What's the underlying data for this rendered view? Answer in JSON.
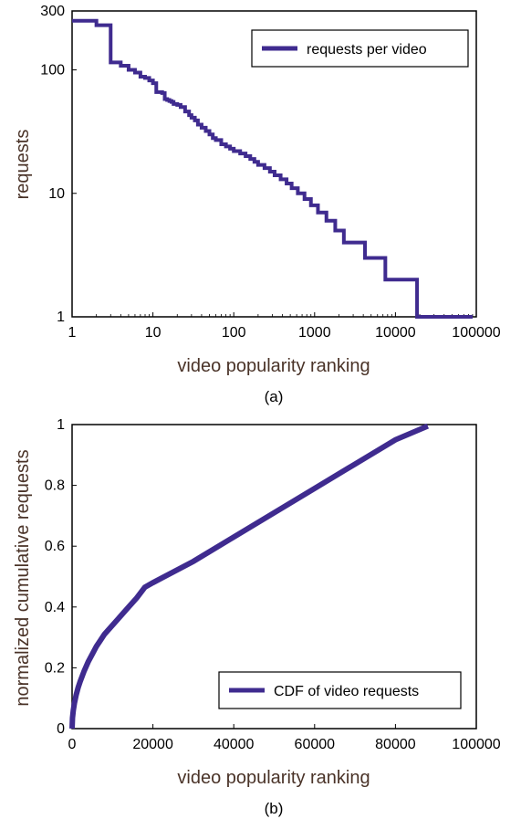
{
  "chart_data": [
    {
      "type": "line",
      "caption": "(a)",
      "xlabel": "video popularity ranking",
      "ylabel": "requests",
      "xscale": "log",
      "yscale": "log",
      "xlim": [
        1,
        100000
      ],
      "ylim": [
        1,
        300
      ],
      "xticks": [
        "1",
        "10",
        "100",
        "1000",
        "10000",
        "100000"
      ],
      "yticks": [
        "1",
        "10",
        "100",
        "300"
      ],
      "legend": {
        "label": "requests per video",
        "position": "top-right"
      },
      "color": "#3f2b8f",
      "series": [
        {
          "name": "requests per video",
          "step": true,
          "x": [
            1,
            2,
            3,
            4,
            5,
            6,
            7,
            8,
            9,
            10,
            11,
            13,
            14,
            15,
            16,
            17,
            18,
            20,
            22,
            25,
            28,
            30,
            33,
            36,
            40,
            45,
            50,
            55,
            60,
            70,
            80,
            90,
            100,
            120,
            140,
            160,
            180,
            200,
            240,
            280,
            320,
            380,
            450,
            520,
            620,
            750,
            900,
            1100,
            1400,
            1800,
            2300,
            2900,
            3700,
            4200,
            7500,
            18500,
            90000
          ],
          "y": [
            250,
            230,
            115,
            108,
            100,
            95,
            88,
            86,
            82,
            78,
            66,
            65,
            58,
            57,
            56,
            55,
            53,
            52,
            50,
            46,
            43,
            41,
            39,
            36,
            34,
            32,
            30,
            28,
            27,
            25,
            24,
            23,
            22,
            21,
            20,
            19,
            18,
            17,
            16,
            15,
            14,
            13,
            12,
            11,
            10,
            9,
            8,
            7,
            6,
            5,
            4,
            4,
            4,
            3,
            2,
            1,
            1
          ]
        }
      ]
    },
    {
      "type": "line",
      "caption": "(b)",
      "xlabel": "video popularity ranking",
      "ylabel": "normalized cumulative requests",
      "xlim": [
        0,
        100000
      ],
      "ylim": [
        0,
        1
      ],
      "xticks": [
        "0",
        "20000",
        "40000",
        "60000",
        "80000",
        "100000"
      ],
      "yticks": [
        "0",
        "0.2",
        "0.4",
        "0.6",
        "0.8",
        "1"
      ],
      "legend": {
        "label": "CDF of video requests",
        "position": "bottom-right"
      },
      "color": "#3f2b8f",
      "series": [
        {
          "name": "CDF of video requests",
          "x": [
            0,
            100,
            300,
            600,
            1000,
            1500,
            2000,
            3000,
            4000,
            5000,
            6000,
            7000,
            8000,
            10000,
            12000,
            14000,
            16000,
            18000,
            20000,
            30000,
            40000,
            50000,
            60000,
            70000,
            80000,
            88000
          ],
          "y": [
            0,
            0.035,
            0.06,
            0.085,
            0.11,
            0.135,
            0.155,
            0.19,
            0.22,
            0.245,
            0.27,
            0.29,
            0.31,
            0.34,
            0.37,
            0.4,
            0.43,
            0.465,
            0.48,
            0.55,
            0.63,
            0.71,
            0.79,
            0.87,
            0.95,
            0.995
          ]
        }
      ]
    }
  ]
}
